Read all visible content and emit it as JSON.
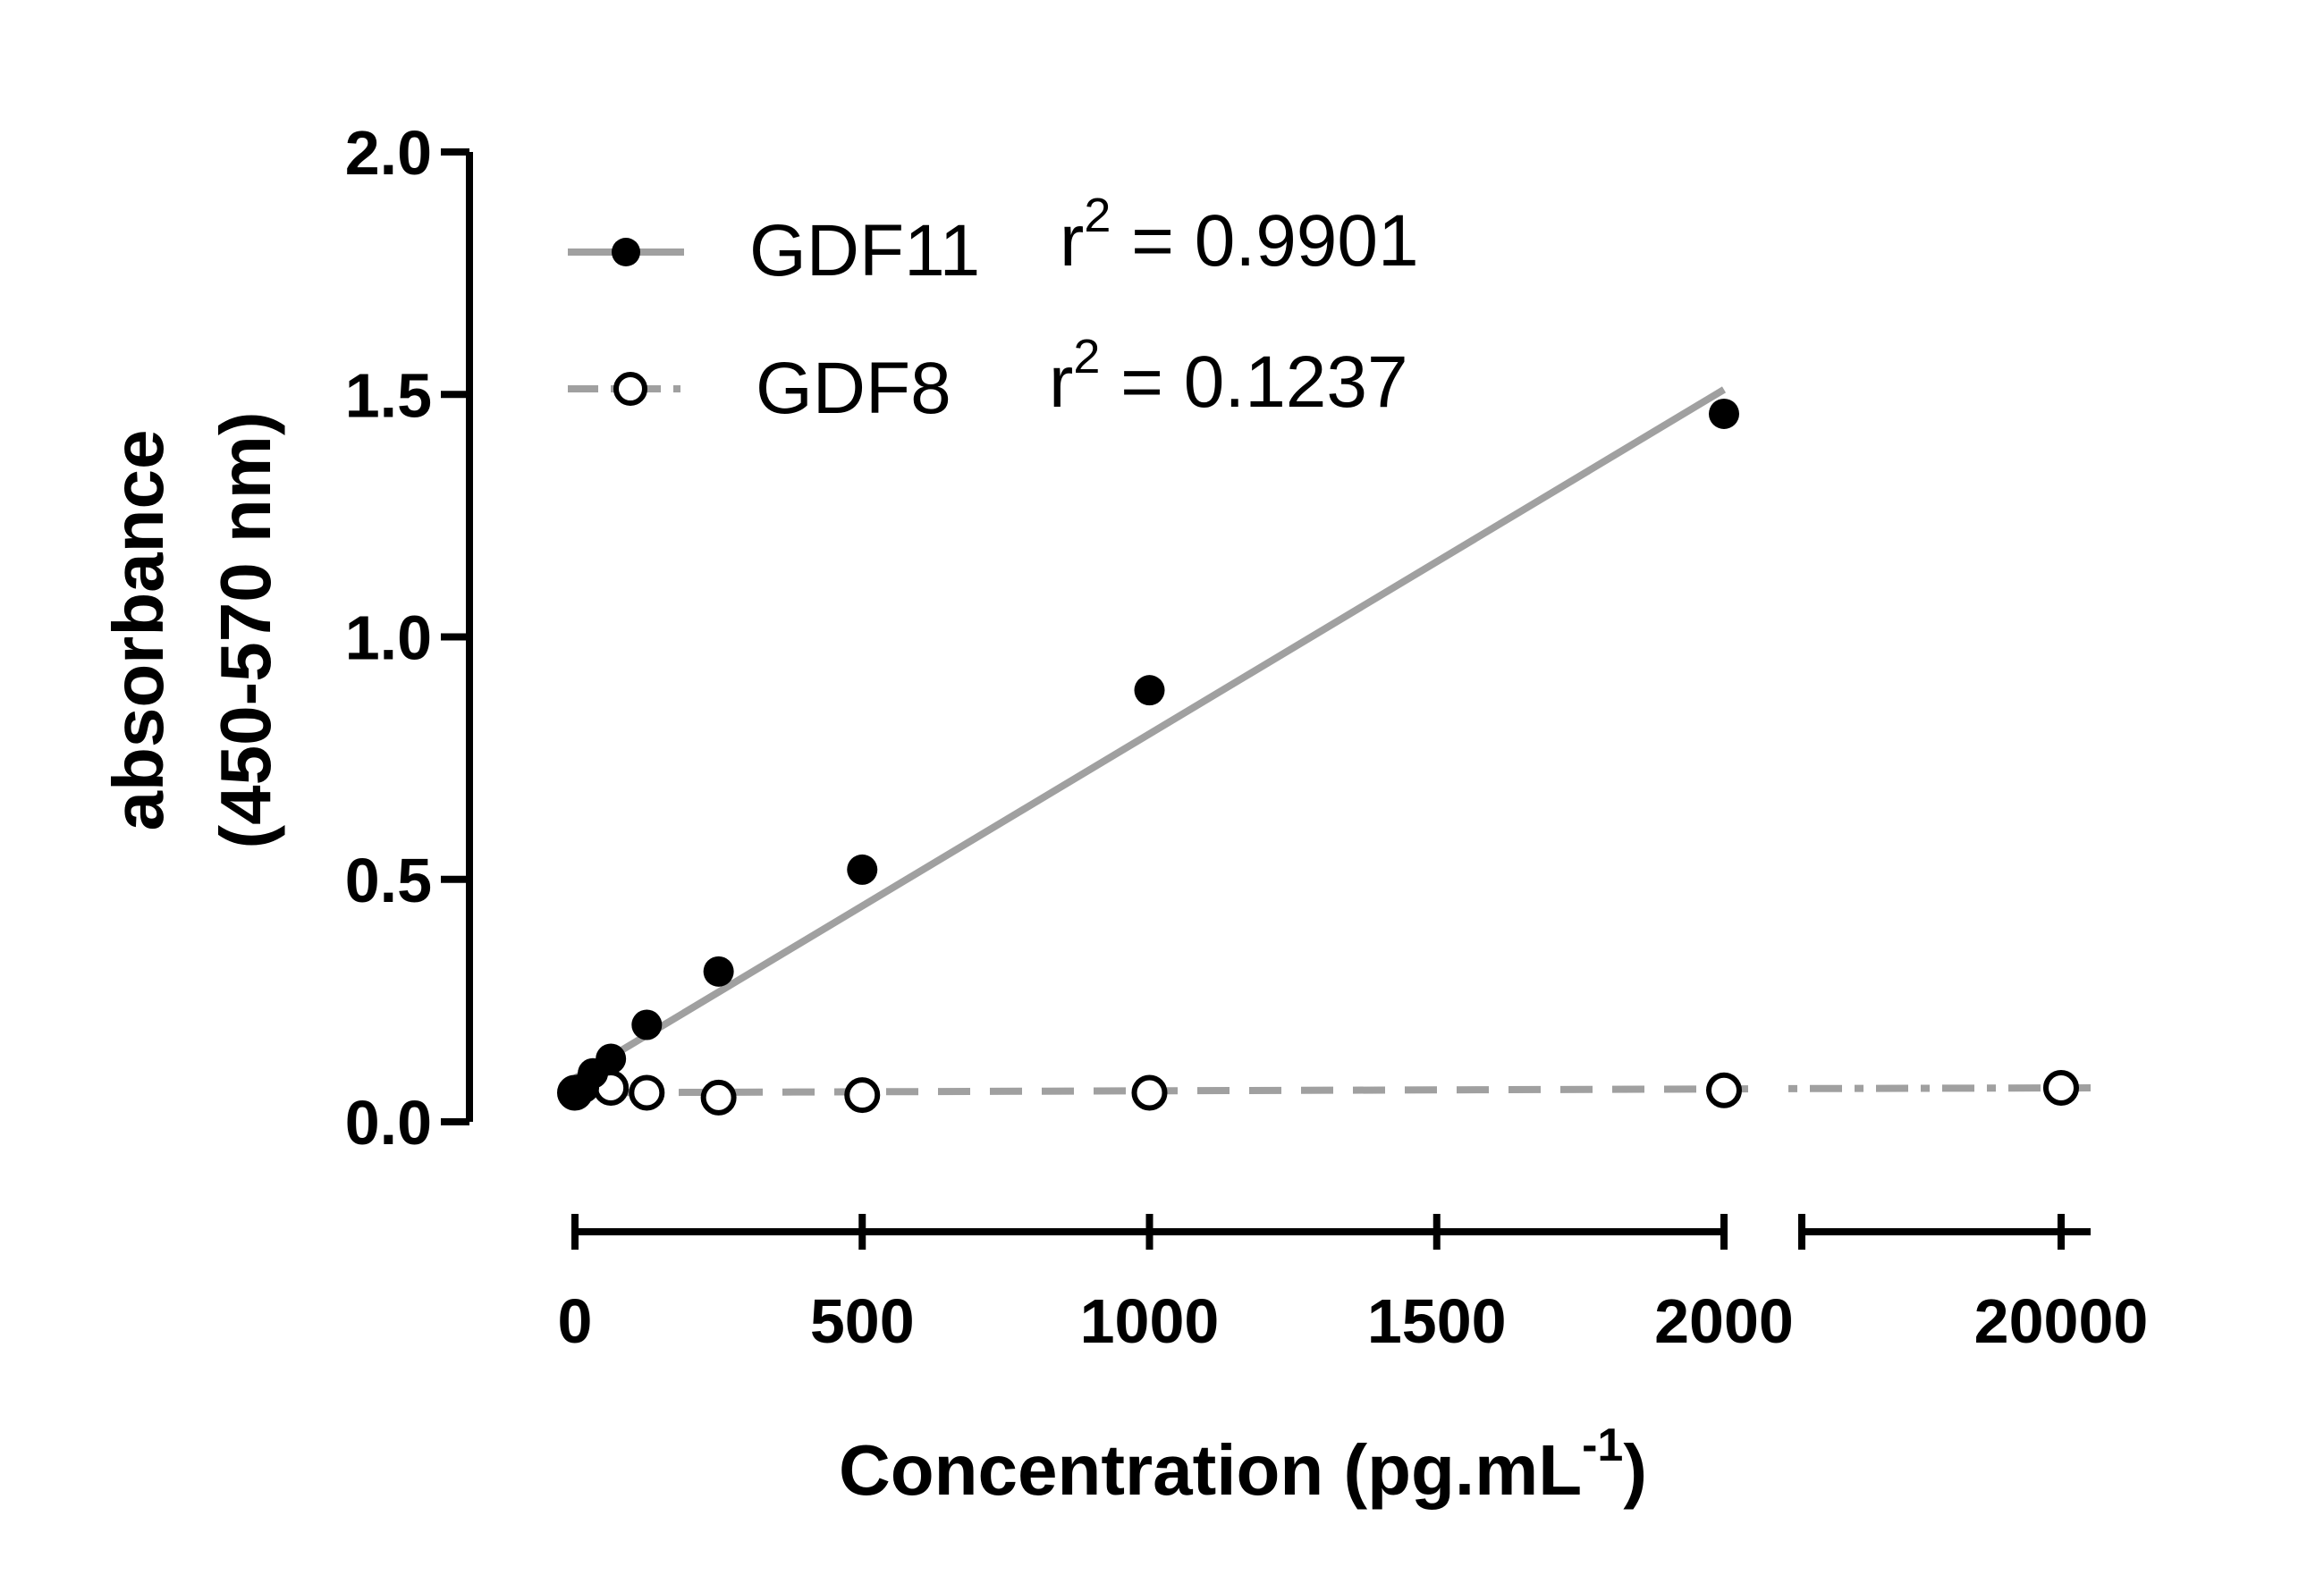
{
  "chart_data": {
    "type": "scatter",
    "title": "",
    "ylabel_line1": "absorbance",
    "ylabel_line2": "(450-570 nm)",
    "xlabel_main": "Concentration  (pg.mL",
    "xlabel_sup": "-1",
    "xlabel_close": ")",
    "ylim": [
      0,
      2.0
    ],
    "yticks": [
      0.0,
      0.5,
      1.0,
      1.5,
      2.0
    ],
    "ytick_labels": [
      "0.0",
      "0.5",
      "1.0",
      "1.5",
      "2.0"
    ],
    "x_axis_break": true,
    "x_segment1": {
      "range": [
        0,
        2000
      ],
      "ticks": [
        0,
        500,
        1000,
        1500,
        2000
      ],
      "tick_labels": [
        "0",
        "500",
        "1000",
        "1500",
        "2000"
      ]
    },
    "x_segment2": {
      "ticks": [
        20000
      ],
      "tick_labels": [
        "20000"
      ]
    },
    "grid": false,
    "legend_position": "top-left",
    "series": [
      {
        "name": "GDF11",
        "r2_label": "r",
        "r2_sup": "2",
        "r2_value": " = 0.9901",
        "marker": "filled-circle",
        "line_style": "solid",
        "color": "#000000",
        "line_color": "#a0a0a0",
        "points": [
          {
            "x": 0,
            "y": 0.06
          },
          {
            "x": 15.6,
            "y": 0.07
          },
          {
            "x": 31.25,
            "y": 0.1
          },
          {
            "x": 62.5,
            "y": 0.13
          },
          {
            "x": 125,
            "y": 0.2
          },
          {
            "x": 250,
            "y": 0.31
          },
          {
            "x": 500,
            "y": 0.52
          },
          {
            "x": 1000,
            "y": 0.89
          },
          {
            "x": 2000,
            "y": 1.46
          }
        ],
        "fit": {
          "x_start": 0,
          "y_start": 0.09,
          "x_end": 2000,
          "y_end": 1.51
        }
      },
      {
        "name": "GDF8",
        "r2_label": "r",
        "r2_sup": "2",
        "r2_value": " = 0.1237",
        "marker": "open-circle",
        "line_style": "dashed",
        "color": "#000000",
        "line_color": "#a0a0a0",
        "points": [
          {
            "x": 0,
            "y": 0.06
          },
          {
            "x": 62.5,
            "y": 0.07
          },
          {
            "x": 125,
            "y": 0.06
          },
          {
            "x": 250,
            "y": 0.05
          },
          {
            "x": 500,
            "y": 0.055
          },
          {
            "x": 1000,
            "y": 0.06
          },
          {
            "x": 2000,
            "y": 0.065
          },
          {
            "x": 20000,
            "y": 0.07
          }
        ],
        "fit": {
          "x_start": 0,
          "y_start": 0.06,
          "x_end": 20000,
          "y_end": 0.07
        }
      }
    ]
  }
}
